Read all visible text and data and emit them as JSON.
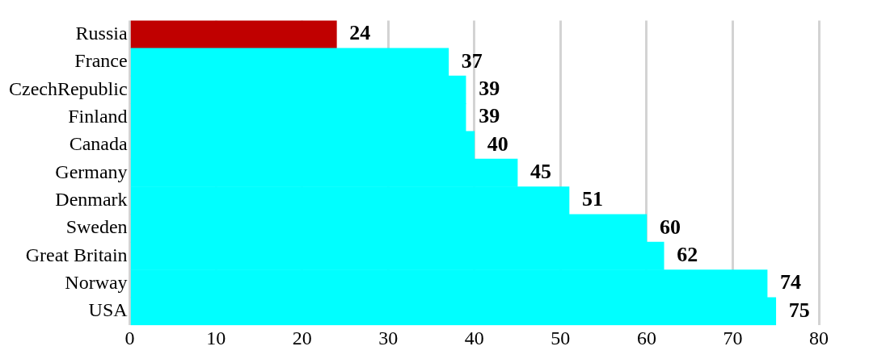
{
  "chart_data": {
    "type": "bar",
    "orientation": "horizontal",
    "categories": [
      "Russia",
      "France",
      "CzechRepublic",
      "Finland",
      "Canada",
      "Germany",
      "Denmark",
      "Sweden",
      "Great Britain",
      "Norway",
      "USA"
    ],
    "values": [
      24,
      37,
      39,
      39,
      40,
      45,
      51,
      60,
      62,
      74,
      75
    ],
    "colors": [
      "#c00000",
      "#00ffff",
      "#00ffff",
      "#00ffff",
      "#00ffff",
      "#00ffff",
      "#00ffff",
      "#00ffff",
      "#00ffff",
      "#00ffff",
      "#00ffff"
    ],
    "xlim": [
      0,
      80
    ],
    "xticks": [
      0,
      10,
      20,
      30,
      40,
      50,
      60,
      70,
      80
    ],
    "grid": "x",
    "data_labels": true
  }
}
